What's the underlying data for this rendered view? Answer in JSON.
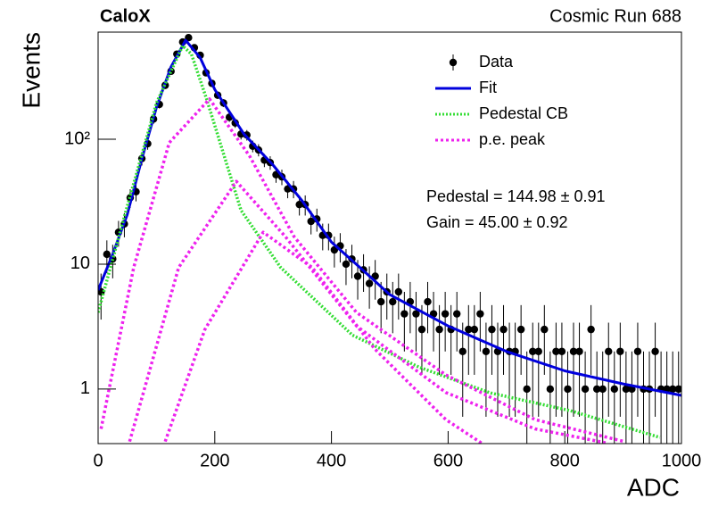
{
  "chart_data": {
    "type": "log-histogram-fit",
    "title": "CaloX",
    "subtitle": "Cosmic Run 688",
    "x_label": "ADC",
    "y_label": "Events",
    "xlim": [
      0,
      1000
    ],
    "xticks": [
      0,
      200,
      400,
      600,
      800,
      1000
    ],
    "ylim": [
      0.366,
      720
    ],
    "yticks": [
      1,
      10,
      {
        "value": 100,
        "label": "10²"
      }
    ],
    "log_y": true,
    "legend": "top-right",
    "annotations": [
      "Pedestal = 144.98 ± 0.91",
      "Gain = 45.00 ± 0.92"
    ],
    "series": [
      {
        "name": "Data",
        "style": "points",
        "color": "#000000",
        "x": [
          5,
          15,
          25,
          35,
          45,
          55,
          65,
          75,
          85,
          95,
          105,
          115,
          125,
          135,
          145,
          155,
          165,
          175,
          185,
          195,
          205,
          215,
          225,
          235,
          245,
          255,
          265,
          275,
          285,
          295,
          305,
          315,
          325,
          335,
          345,
          355,
          365,
          375,
          385,
          395,
          405,
          415,
          425,
          435,
          445,
          455,
          465,
          475,
          485,
          495,
          505,
          515,
          525,
          535,
          545,
          555,
          565,
          575,
          585,
          595,
          605,
          615,
          625,
          635,
          645,
          655,
          665,
          675,
          685,
          695,
          705,
          715,
          725,
          735,
          745,
          755,
          765,
          775,
          785,
          795,
          805,
          815,
          825,
          835,
          845,
          855,
          865,
          875,
          885,
          895,
          905,
          915,
          925,
          935,
          945,
          955,
          965,
          975,
          985,
          995
        ],
        "values": [
          6,
          12,
          11,
          18,
          21,
          34,
          38,
          70,
          92,
          145,
          190,
          270,
          350,
          480,
          600,
          650,
          540,
          470,
          340,
          280,
          225,
          195,
          150,
          135,
          110,
          108,
          88,
          82,
          68,
          65,
          52,
          50,
          40,
          40,
          30,
          30,
          22,
          23,
          17,
          17,
          13,
          14,
          10,
          11,
          8,
          9,
          7,
          8,
          5,
          6,
          5,
          6,
          4,
          5,
          4,
          3,
          5,
          4,
          3,
          4,
          3,
          4,
          2,
          3,
          3,
          4,
          2,
          3,
          2,
          3,
          2,
          2,
          3,
          1,
          2,
          2,
          3,
          1,
          2,
          2,
          1,
          2,
          2,
          1,
          3,
          1,
          1,
          2,
          1,
          2,
          1,
          1,
          2,
          1,
          1,
          2,
          1,
          1,
          1,
          1
        ],
        "errors": [
          2.4,
          3.5,
          3.3,
          4.2,
          4.6,
          5.8,
          6.2,
          8.4,
          9.6,
          12,
          13.8,
          16.4,
          18.7,
          21.9,
          24.5,
          25.5,
          23.2,
          21.7,
          18.4,
          16.7,
          15,
          14,
          12.2,
          11.6,
          10.5,
          10.4,
          9.4,
          9.1,
          8.2,
          8.1,
          7.2,
          7.1,
          6.3,
          6.3,
          5.5,
          5.5,
          4.7,
          4.8,
          4.1,
          4.1,
          3.6,
          3.7,
          3.2,
          3.3,
          2.8,
          3,
          2.6,
          2.8,
          2.2,
          2.4,
          2.2,
          2.4,
          2,
          2.2,
          2,
          1.7,
          2.2,
          2,
          1.7,
          2,
          1.7,
          2,
          1.4,
          1.7,
          1.7,
          2,
          1.4,
          1.7,
          1.4,
          1.7,
          1.4,
          1.4,
          1.7,
          1,
          1.4,
          1.4,
          1.7,
          1,
          1.4,
          1.4,
          1,
          1.4,
          1.4,
          1,
          1.7,
          1,
          1,
          1.4,
          1,
          1.4,
          1,
          1,
          1.4,
          1,
          1,
          1.4,
          1,
          1,
          1,
          1
        ]
      },
      {
        "name": "Fit",
        "style": "solid",
        "color": "#0000dd",
        "x": [
          0,
          25,
          50,
          75,
          100,
          125,
          150,
          175,
          200,
          250,
          300,
          350,
          400,
          450,
          500,
          600,
          700,
          800,
          900,
          1000
        ],
        "values": [
          6.2,
          12,
          25,
          70,
          180,
          380,
          620,
          450,
          250,
          110,
          62,
          32,
          15,
          9.3,
          5.7,
          3.2,
          2.0,
          1.4,
          1.1,
          0.89
        ]
      },
      {
        "name": "Pedestal CB",
        "style": "dotted",
        "color": "#33dd33",
        "x": [
          0,
          46,
          100,
          145,
          160,
          186,
          245,
          313,
          436,
          550,
          673,
          810,
          963
        ],
        "values": [
          4.1,
          25,
          195,
          560,
          480,
          210,
          27,
          9.4,
          2.7,
          1.5,
          0.93,
          0.67,
          0.41
        ]
      },
      {
        "name": "p.e. peak",
        "style": "dashed",
        "color": "#ee22ee",
        "x": [
          5,
          61,
          122,
          191,
          260,
          336,
          443,
          596,
          749,
          902
        ],
        "values": [
          0.48,
          9.4,
          94,
          210,
          73,
          16.6,
          4.1,
          1.3,
          0.57,
          0.38
        ]
      },
      {
        "style": "dashed",
        "color": "#ee22ee",
        "x": [
          54,
          138,
          237,
          321,
          443,
          596,
          749,
          872
        ],
        "values": [
          0.38,
          9.4,
          46,
          16.6,
          3.2,
          0.94,
          0.48,
          0.37
        ]
      },
      {
        "style": "dashed",
        "color": "#ee22ee",
        "x": [
          115,
          183,
          283,
          367,
          474,
          596,
          657
        ],
        "values": [
          0.38,
          3.0,
          18,
          9.4,
          2.1,
          0.57,
          0.37
        ]
      }
    ]
  }
}
